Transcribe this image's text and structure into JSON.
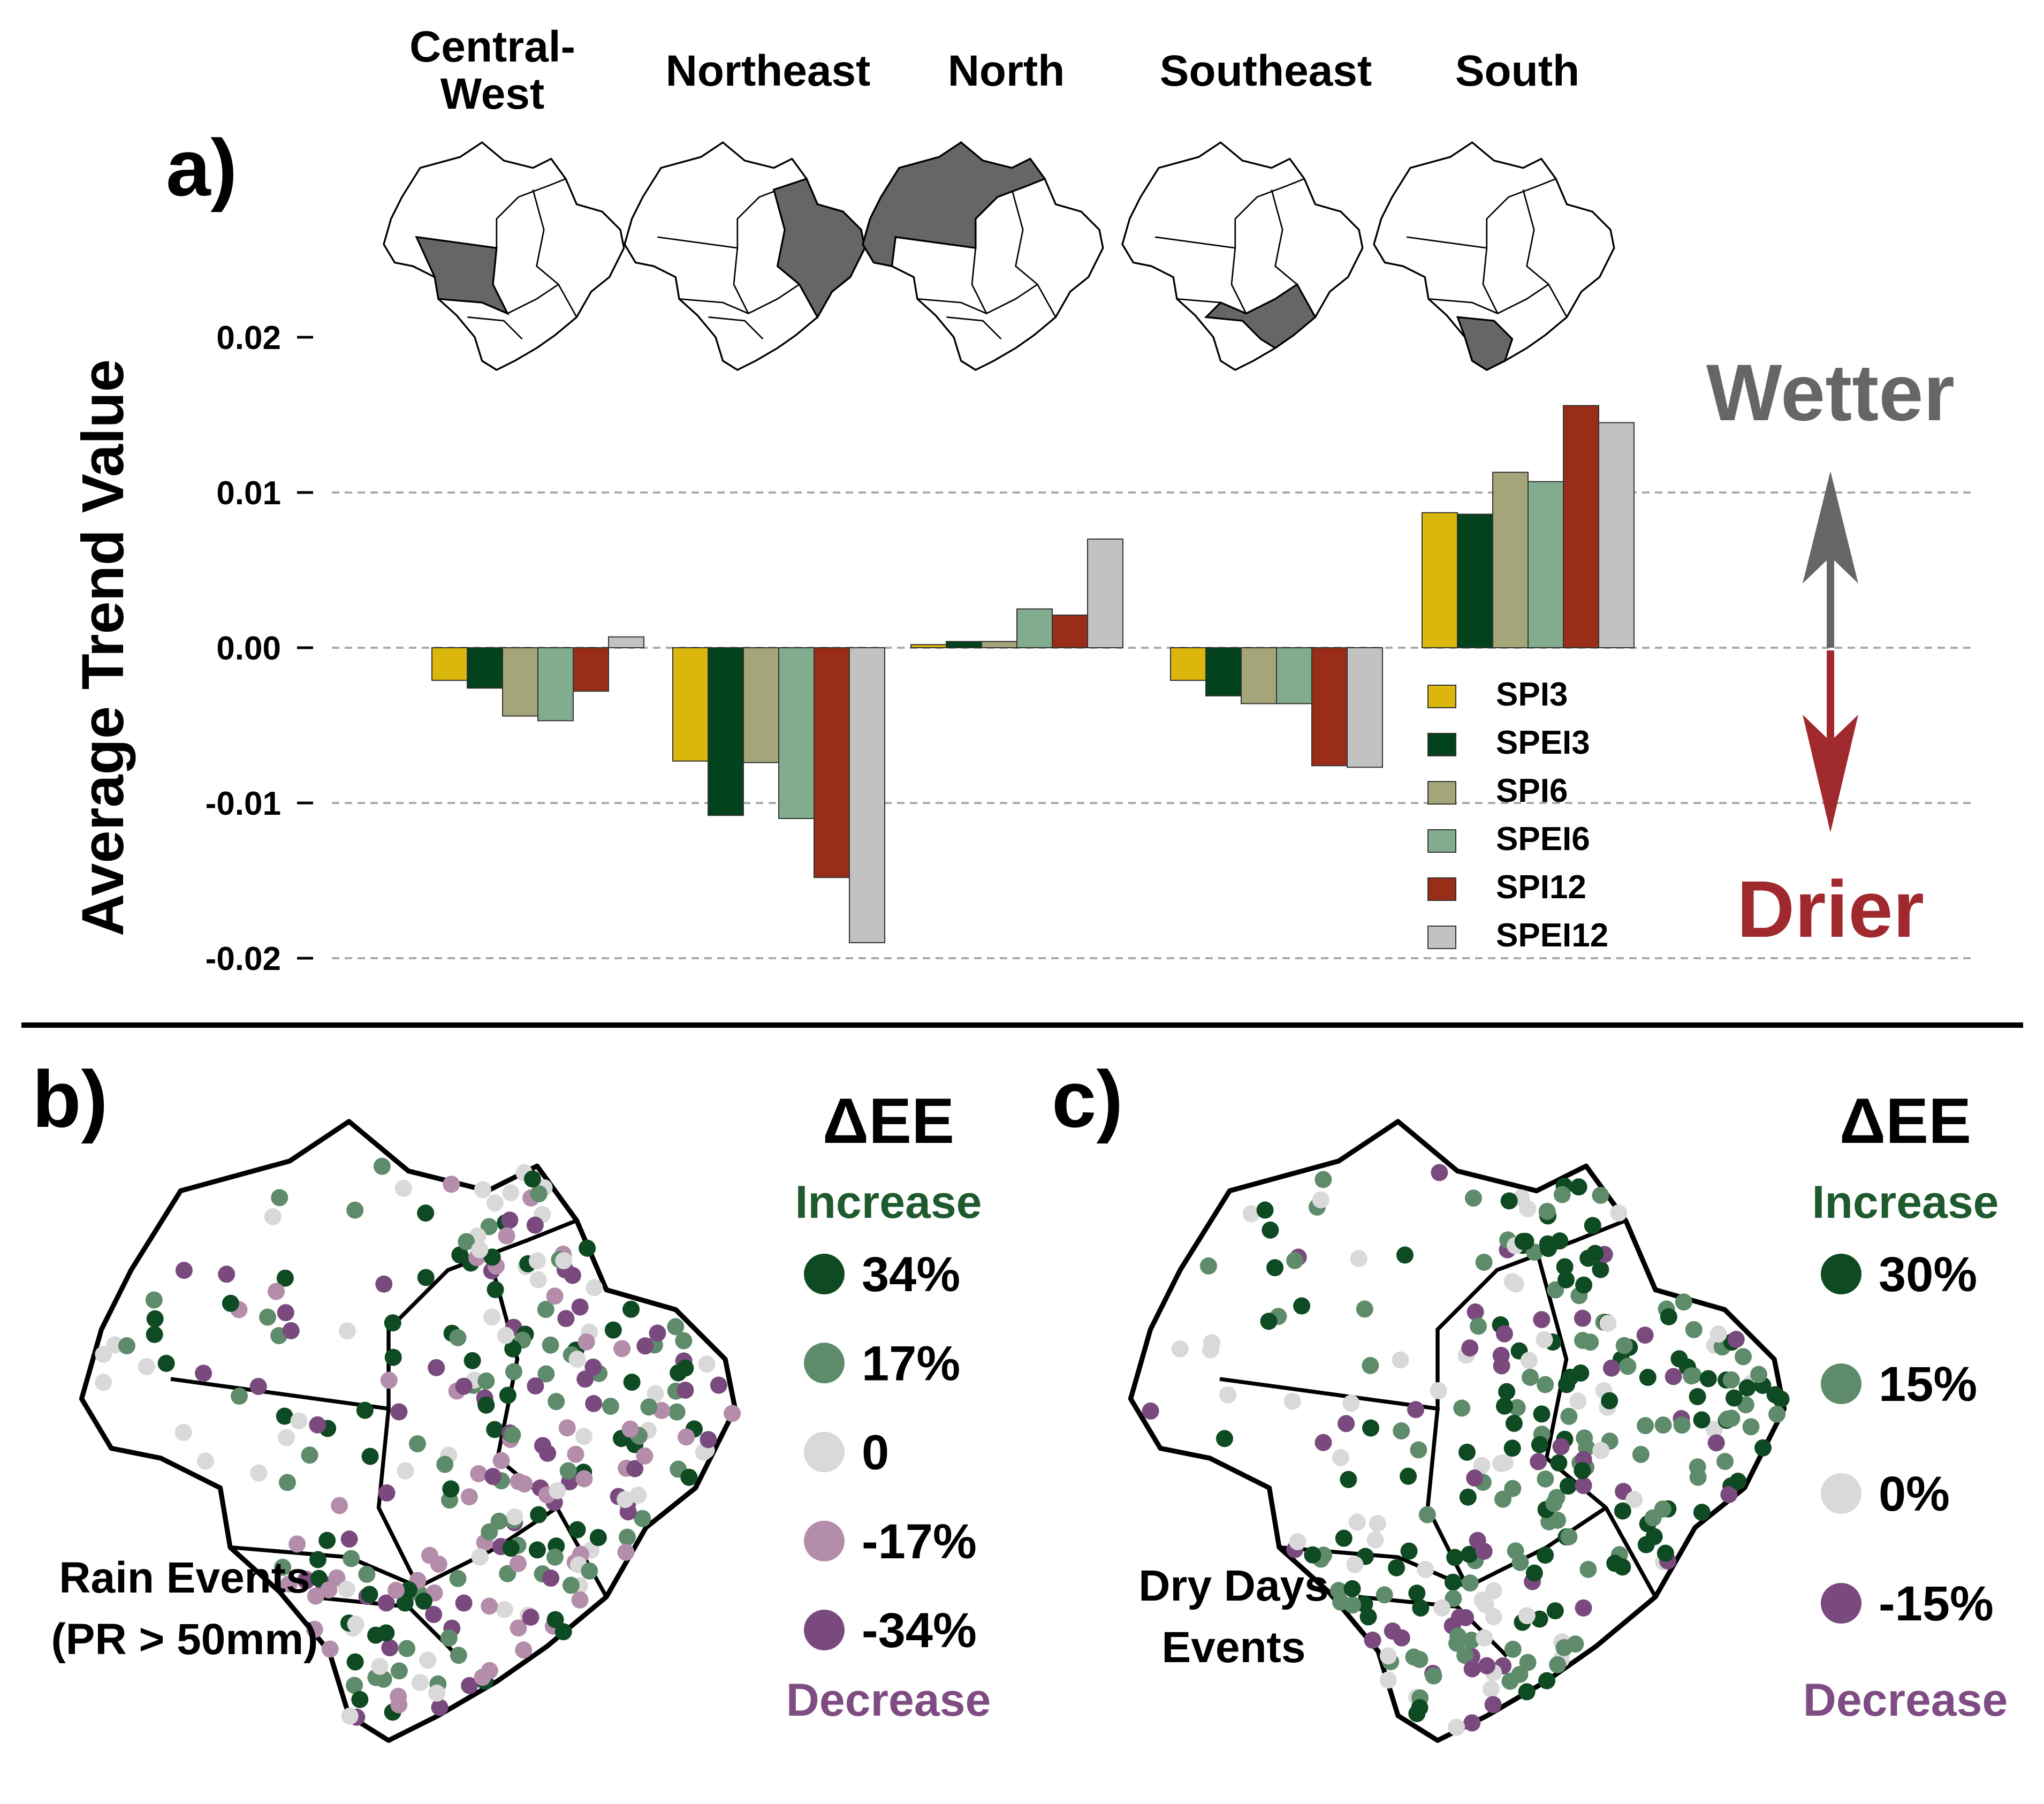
{
  "panels": {
    "a": "a)",
    "b": "b)",
    "c": "c)"
  },
  "region_titles": [
    {
      "lines": [
        "Central-",
        "West"
      ]
    },
    {
      "lines": [
        "Northeast"
      ]
    },
    {
      "lines": [
        "North"
      ]
    },
    {
      "lines": [
        "Southeast"
      ]
    },
    {
      "lines": [
        "South"
      ]
    }
  ],
  "chart_data": {
    "type": "bar",
    "title": "",
    "xlabel": "",
    "ylabel": "Average Trend Value",
    "ylim": [
      -0.021,
      0.021
    ],
    "yticks": [
      {
        "value": 0.02,
        "label": "0.02",
        "grid": false
      },
      {
        "value": 0.01,
        "label": "0.01",
        "grid": true
      },
      {
        "value": 0.0,
        "label": "0.00",
        "grid": true
      },
      {
        "value": -0.01,
        "label": "-0.01",
        "grid": true
      },
      {
        "value": -0.02,
        "label": "-0.02",
        "grid": true
      }
    ],
    "categories": [
      "Central-West",
      "Northeast",
      "North",
      "Southeast",
      "South"
    ],
    "series": [
      {
        "name": "SPI3",
        "color": "#DBB70B",
        "values": [
          -0.0021,
          -0.0073,
          0.0002,
          -0.0021,
          0.0087
        ]
      },
      {
        "name": "SPEI3",
        "color": "#02421C",
        "values": [
          -0.0026,
          -0.0108,
          0.0004,
          -0.0031,
          0.0086
        ]
      },
      {
        "name": "SPI6",
        "color": "#A5A57A",
        "values": [
          -0.0044,
          -0.0074,
          0.0004,
          -0.0036,
          0.0113
        ]
      },
      {
        "name": "SPEI6",
        "color": "#82AC8E",
        "values": [
          -0.0047,
          -0.011,
          0.0025,
          -0.0036,
          0.0107
        ]
      },
      {
        "name": "SPI12",
        "color": "#9A2D18",
        "values": [
          -0.0028,
          -0.0148,
          0.0021,
          -0.0076,
          0.0156
        ]
      },
      {
        "name": "SPEI12",
        "color": "#C2C2C2",
        "values": [
          0.0007,
          -0.019,
          0.007,
          -0.0077,
          0.0145
        ]
      }
    ],
    "legend_position": "lower-right"
  },
  "direction": {
    "wetter": "Wetter",
    "drier": "Drier",
    "wetter_color": "#666666",
    "drier_color": "#A0292E"
  },
  "maps": {
    "b": {
      "legend_title": "ΔEE",
      "increase": "Increase",
      "decrease": "Decrease",
      "caption": [
        "Rain Events",
        "(PR > 50mm)"
      ],
      "levels": [
        {
          "label": "34%",
          "color": "#0E4A22"
        },
        {
          "label": "17%",
          "color": "#5E8C6A"
        },
        {
          "label": "0",
          "color": "#D9D9D9"
        },
        {
          "label": "-17%",
          "color": "#B48DAA"
        },
        {
          "label": "-34%",
          "color": "#7A4A7F"
        }
      ]
    },
    "c": {
      "legend_title": "ΔEE",
      "increase": "Increase",
      "decrease": "Decrease",
      "caption": [
        "Dry Days",
        "Events"
      ],
      "levels": [
        {
          "label": "30%",
          "color": "#0E4A22"
        },
        {
          "label": "15%",
          "color": "#5E8C6A"
        },
        {
          "label": "0%",
          "color": "#D9D9D9"
        },
        {
          "label": "-15%",
          "color": "#7A4A7F"
        }
      ]
    }
  },
  "colors": {
    "increase": "#1E5A2E",
    "decrease": "#7E4C82",
    "region_fill": "#666666"
  }
}
